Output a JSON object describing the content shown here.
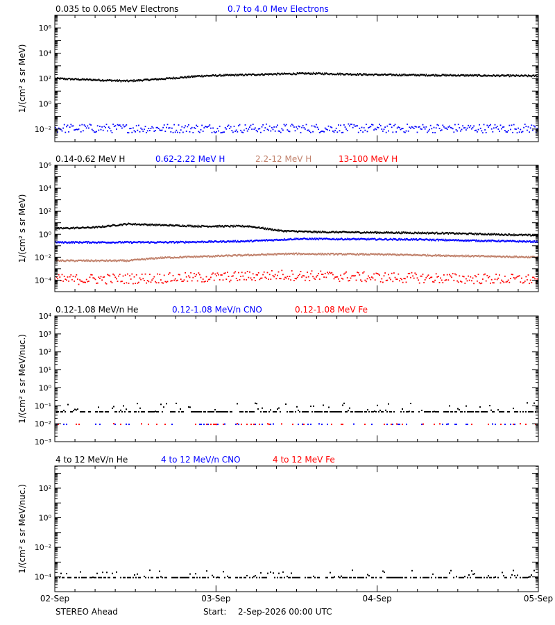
{
  "footer": {
    "spacecraft": "STEREO Ahead",
    "start_label": "Start:",
    "start_value": "2-Sep-2026 00:00 UTC"
  },
  "colors": {
    "black": "#000000",
    "blue": "#0000ff",
    "tan": "#c0806a",
    "red": "#ff0000"
  },
  "chart_data": [
    {
      "type": "scatter",
      "legend": [
        {
          "name": "0.035 to 0.065 MeV Electrons",
          "color": "#000000"
        },
        {
          "name": "0.7 to 4.0 Mev Electrons",
          "color": "#0000ff"
        }
      ],
      "ylabel": "1/(cm² s sr MeV)",
      "yscale": "log",
      "ylim_exp": [
        -3,
        7
      ],
      "y_ticks": [
        "10⁻²",
        "10⁰",
        "10²",
        "10⁴",
        "10⁶"
      ],
      "x_ticks": [
        "02-Sep",
        "03-Sep",
        "04-Sep",
        "05-Sep"
      ],
      "xlim_days": [
        0,
        3
      ],
      "grid": false,
      "series": [
        {
          "name": "0.035 to 0.065 MeV Electrons",
          "color": "#000000",
          "style": "dense",
          "log10_values": [
            [
              0,
              2.0
            ],
            [
              0.45,
              1.8
            ],
            [
              0.7,
              2.0
            ],
            [
              0.9,
              2.2
            ],
            [
              1.35,
              2.35
            ],
            [
              1.6,
              2.4
            ],
            [
              2.0,
              2.3
            ],
            [
              3.0,
              2.2
            ]
          ]
        },
        {
          "name": "0.7 to 4.0 Mev Electrons",
          "color": "#0000ff",
          "style": "scatter",
          "spread": 0.35,
          "log10_values": [
            [
              0,
              -1.9
            ],
            [
              3.0,
              -1.9
            ]
          ]
        }
      ]
    },
    {
      "type": "scatter",
      "legend": [
        {
          "name": "0.14-0.62 MeV H",
          "color": "#000000"
        },
        {
          "name": "0.62-2.22 MeV H",
          "color": "#0000ff"
        },
        {
          "name": "2.2-12 MeV H",
          "color": "#c0806a"
        },
        {
          "name": "13-100 MeV H",
          "color": "#ff0000"
        }
      ],
      "ylabel": "1/(cm² s sr MeV)",
      "yscale": "log",
      "ylim_exp": [
        -5,
        6
      ],
      "y_ticks": [
        "10⁻⁴",
        "10⁻²",
        "10⁰",
        "10²",
        "10⁴",
        "10⁶"
      ],
      "x_ticks": [
        "02-Sep",
        "03-Sep",
        "04-Sep",
        "05-Sep"
      ],
      "xlim_days": [
        0,
        3
      ],
      "grid": false,
      "series": [
        {
          "name": "0.14-0.62 MeV H",
          "color": "#000000",
          "style": "dense",
          "log10_values": [
            [
              0,
              0.5
            ],
            [
              0.25,
              0.6
            ],
            [
              0.45,
              0.9
            ],
            [
              0.65,
              0.8
            ],
            [
              0.9,
              0.7
            ],
            [
              1.2,
              0.7
            ],
            [
              1.4,
              0.3
            ],
            [
              1.6,
              0.2
            ],
            [
              2.4,
              0.1
            ],
            [
              3.0,
              -0.1
            ]
          ]
        },
        {
          "name": "0.62-2.22 MeV H",
          "color": "#0000ff",
          "style": "dense",
          "log10_values": [
            [
              0,
              -0.7
            ],
            [
              0.7,
              -0.7
            ],
            [
              1.2,
              -0.6
            ],
            [
              1.5,
              -0.4
            ],
            [
              2.2,
              -0.45
            ],
            [
              3.0,
              -0.65
            ]
          ]
        },
        {
          "name": "2.2-12 MeV H",
          "color": "#c0806a",
          "style": "dense",
          "log10_values": [
            [
              0,
              -2.3
            ],
            [
              0.45,
              -2.3
            ],
            [
              0.65,
              -2.05
            ],
            [
              1.0,
              -1.9
            ],
            [
              1.45,
              -1.7
            ],
            [
              2.0,
              -1.75
            ],
            [
              3.0,
              -2.0
            ]
          ]
        },
        {
          "name": "13-100 MeV H",
          "color": "#ff0000",
          "style": "scatter",
          "spread": 0.45,
          "log10_values": [
            [
              0,
              -3.9
            ],
            [
              1.0,
              -3.7
            ],
            [
              1.4,
              -3.5
            ],
            [
              2.0,
              -3.7
            ],
            [
              3.0,
              -3.9
            ]
          ]
        }
      ]
    },
    {
      "type": "scatter",
      "legend": [
        {
          "name": "0.12-1.08 MeV/n He",
          "color": "#000000"
        },
        {
          "name": "0.12-1.08 MeV/n CNO",
          "color": "#0000ff"
        },
        {
          "name": "0.12-1.08 MeV Fe",
          "color": "#ff0000"
        }
      ],
      "ylabel": "1/(cm² s sr MeV/nuc.)",
      "yscale": "log",
      "ylim_exp": [
        -3,
        4
      ],
      "y_ticks": [
        "10⁻³",
        "10⁻²",
        "10⁻¹",
        "10⁰",
        "10¹",
        "10²",
        "10³",
        "10⁴"
      ],
      "x_ticks": [
        "02-Sep",
        "03-Sep",
        "04-Sep",
        "05-Sep"
      ],
      "xlim_days": [
        0,
        3
      ],
      "grid": false,
      "series": [
        {
          "name": "0.12-1.08 MeV/n He",
          "color": "#000000",
          "style": "sparse",
          "base": -1.3,
          "spread": 0.25,
          "density": 0.8,
          "log10_values": [
            [
              0,
              -1.3
            ],
            [
              3.0,
              -1.3
            ]
          ]
        },
        {
          "name": "0.12-1.08 MeV/n CNO",
          "color": "#0000ff",
          "style": "sparse",
          "base": -2.0,
          "spread": 0.02,
          "density": 0.12,
          "log10_values": [
            [
              0,
              -2.0
            ],
            [
              3.0,
              -2.0
            ]
          ]
        },
        {
          "name": "0.12-1.08 MeV Fe",
          "color": "#ff0000",
          "style": "sparse",
          "base": -2.0,
          "spread": 0.02,
          "density": 0.1,
          "log10_values": [
            [
              0,
              -2.0
            ],
            [
              3.0,
              -2.0
            ]
          ]
        }
      ]
    },
    {
      "type": "scatter",
      "legend": [
        {
          "name": "4 to 12 MeV/n He",
          "color": "#000000"
        },
        {
          "name": "4 to 12 MeV/n CNO",
          "color": "#0000ff"
        },
        {
          "name": "4 to 12 MeV Fe",
          "color": "#ff0000"
        }
      ],
      "ylabel": "1/(cm² s sr MeV/nuc.)",
      "yscale": "log",
      "ylim_exp": [
        -5.0,
        3.5
      ],
      "y_ticks": [
        "10⁻⁴",
        "10⁻²",
        "10⁰",
        "10²"
      ],
      "x_ticks": [
        "02-Sep",
        "03-Sep",
        "04-Sep",
        "05-Sep"
      ],
      "xlim_days": [
        0,
        3
      ],
      "grid": false,
      "series": [
        {
          "name": "4 to 12 MeV/n He",
          "color": "#000000",
          "style": "sparse",
          "base": -4.0,
          "spread": 0.25,
          "density": 0.7,
          "log10_values": [
            [
              0,
              -4.0
            ],
            [
              3.0,
              -4.0
            ]
          ]
        },
        {
          "name": "4 to 12 MeV/n CNO",
          "color": "#0000ff",
          "style": "sparse",
          "base": -5.0,
          "spread": 0.02,
          "density": 0.06,
          "log10_values": [
            [
              0,
              -5.0
            ],
            [
              3.0,
              -5.0
            ]
          ]
        }
      ]
    }
  ]
}
